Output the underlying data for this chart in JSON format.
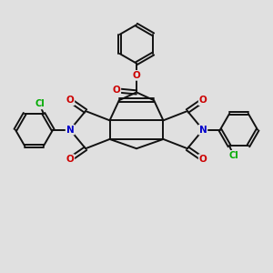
{
  "background_color": "#e0e0e0",
  "bond_color": "#111111",
  "N_color": "#0000cc",
  "O_color": "#cc0000",
  "Cl_color": "#00aa00",
  "bond_width": 1.4,
  "figsize": [
    3.0,
    3.0
  ],
  "dpi": 100,
  "xlim": [
    0,
    10
  ],
  "ylim": [
    0,
    10
  ]
}
